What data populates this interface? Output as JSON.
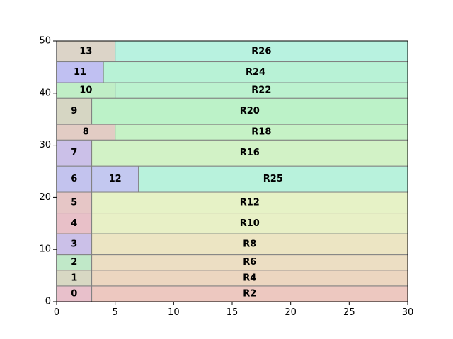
{
  "chart_data": {
    "type": "rectangles",
    "xlim": [
      0,
      30
    ],
    "ylim": [
      0,
      50
    ],
    "x_ticks": [
      0,
      5,
      10,
      15,
      20,
      25,
      30
    ],
    "y_ticks": [
      0,
      10,
      20,
      30,
      40,
      50
    ],
    "grid": false,
    "rectangles": [
      {
        "label": "0",
        "x0": 0,
        "x1": 3,
        "y0": 0,
        "y1": 3,
        "color": "#e8c0cb"
      },
      {
        "label": "R2",
        "x0": 3,
        "x1": 30,
        "y0": 0,
        "y1": 3,
        "color": "#edc8c0"
      },
      {
        "label": "1",
        "x0": 0,
        "x1": 3,
        "y0": 3,
        "y1": 6,
        "color": "#d8d8c3"
      },
      {
        "label": "R4",
        "x0": 3,
        "x1": 30,
        "y0": 3,
        "y1": 6,
        "color": "#ecd6c0"
      },
      {
        "label": "2",
        "x0": 0,
        "x1": 3,
        "y0": 6,
        "y1": 9,
        "color": "#c0e8c8"
      },
      {
        "label": "R6",
        "x0": 3,
        "x1": 30,
        "y0": 6,
        "y1": 9,
        "color": "#ecdec3"
      },
      {
        "label": "3",
        "x0": 0,
        "x1": 3,
        "y0": 9,
        "y1": 13,
        "color": "#cbc0e8"
      },
      {
        "label": "R8",
        "x0": 3,
        "x1": 30,
        "y0": 9,
        "y1": 13,
        "color": "#ece5c3"
      },
      {
        "label": "4",
        "x0": 0,
        "x1": 3,
        "y0": 13,
        "y1": 17,
        "color": "#e8c0c8"
      },
      {
        "label": "R10",
        "x0": 3,
        "x1": 30,
        "y0": 13,
        "y1": 17,
        "color": "#e8f0c6"
      },
      {
        "label": "5",
        "x0": 0,
        "x1": 3,
        "y0": 17,
        "y1": 21,
        "color": "#e6c6c6"
      },
      {
        "label": "R12",
        "x0": 3,
        "x1": 30,
        "y0": 17,
        "y1": 21,
        "color": "#e6f2c6"
      },
      {
        "label": "6",
        "x0": 0,
        "x1": 3,
        "y0": 21,
        "y1": 26,
        "color": "#c3c3ee"
      },
      {
        "label": "12",
        "x0": 3,
        "x1": 7,
        "y0": 21,
        "y1": 26,
        "color": "#c3c8f0"
      },
      {
        "label": "R25",
        "x0": 7,
        "x1": 30,
        "y0": 21,
        "y1": 26,
        "color": "#b8f2dc"
      },
      {
        "label": "7",
        "x0": 0,
        "x1": 3,
        "y0": 26,
        "y1": 31,
        "color": "#cbc0e8"
      },
      {
        "label": "R16",
        "x0": 3,
        "x1": 30,
        "y0": 26,
        "y1": 31,
        "color": "#d2f2c6"
      },
      {
        "label": "8",
        "x0": 0,
        "x1": 5,
        "y0": 31,
        "y1": 34,
        "color": "#e2ccc4"
      },
      {
        "label": "R18",
        "x0": 5,
        "x1": 30,
        "y0": 31,
        "y1": 34,
        "color": "#c6f2c6"
      },
      {
        "label": "9",
        "x0": 0,
        "x1": 3,
        "y0": 34,
        "y1": 39,
        "color": "#d6d6c3"
      },
      {
        "label": "R20",
        "x0": 3,
        "x1": 30,
        "y0": 34,
        "y1": 39,
        "color": "#bcf2c8"
      },
      {
        "label": "10",
        "x0": 0,
        "x1": 5,
        "y0": 39,
        "y1": 42,
        "color": "#c0eec6"
      },
      {
        "label": "R22",
        "x0": 5,
        "x1": 30,
        "y0": 39,
        "y1": 42,
        "color": "#bcf2cf"
      },
      {
        "label": "11",
        "x0": 0,
        "x1": 4,
        "y0": 42,
        "y1": 46,
        "color": "#c0c0f2"
      },
      {
        "label": "R24",
        "x0": 4,
        "x1": 30,
        "y0": 42,
        "y1": 46,
        "color": "#b8f2d6"
      },
      {
        "label": "13",
        "x0": 0,
        "x1": 5,
        "y0": 46,
        "y1": 50,
        "color": "#dcd4c8"
      },
      {
        "label": "R26",
        "x0": 5,
        "x1": 30,
        "y0": 46,
        "y1": 50,
        "color": "#b8f2e0"
      }
    ]
  }
}
